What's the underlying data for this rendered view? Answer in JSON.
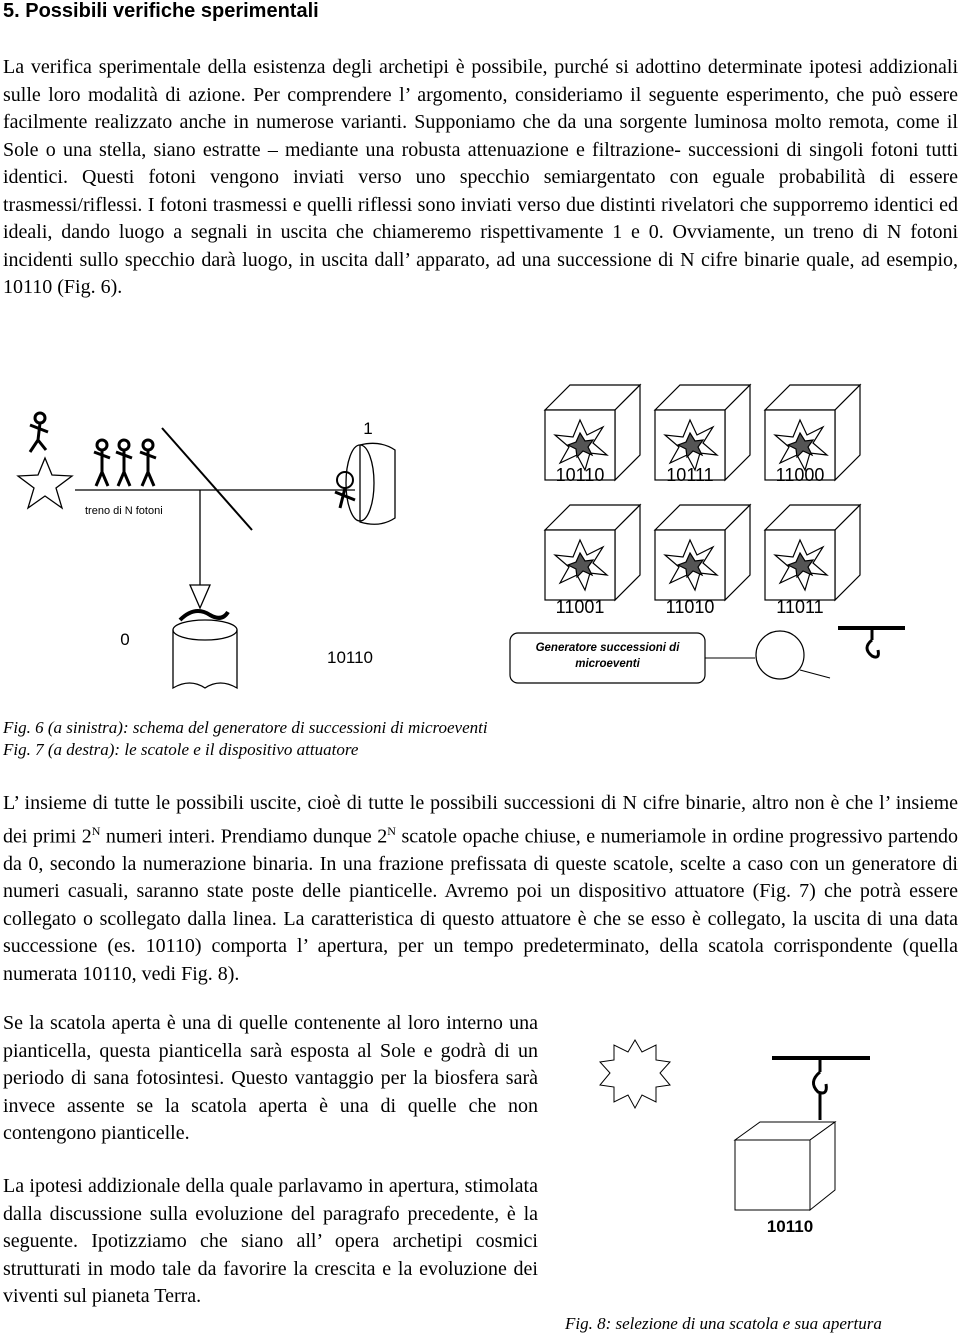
{
  "heading": "5. Possibili verifiche sperimentali",
  "paragraph1": "La verifica sperimentale della esistenza degli archetipi è possibile, purché si adottino determinate ipotesi addizionali sulle loro modalità di azione. Per comprendere l’ argomento, consideriamo il seguente esperimento, che può essere facilmente realizzato anche in numerose varianti. Supponiamo che da una sorgente luminosa molto remota, come il Sole o una stella, siano estratte – mediante una robusta attenuazione e filtrazione- successioni di singoli fotoni tutti identici. Questi fotoni vengono inviati verso uno specchio semiargentato con eguale probabilità di essere trasmessi/riflessi. I fotoni trasmessi e quelli riflessi sono inviati verso due distinti rivelatori che supporremo identici ed ideali, dando luogo a segnali in uscita che chiameremo rispettivamente 1 e 0. Ovviamente, un treno di N fotoni incidenti sullo specchio darà luogo, in uscita dall’ apparato, ad una successione di N cifre binarie quale, ad esempio, 10110 (Fig. 6).",
  "figure6": {
    "label_train": "treno di N fotoni",
    "label_transmitted": "1",
    "label_reflected": "0",
    "label_output": "10110"
  },
  "figure7": {
    "boxes": [
      "10110",
      "10111",
      "11000",
      "11001",
      "11010",
      "11011"
    ],
    "generator": "Generatore successioni di microeventi"
  },
  "captions": [
    "Fig. 6 (a sinistra): schema del generatore di successioni di microeventi",
    "Fig. 7 (a destra): le scatole e il dispositivo attuatore"
  ],
  "paragraph2": [
    "L’ insieme di tutte le possibili uscite, cioè di tutte le possibili successioni di N cifre binarie, altro non è che l’ insieme dei primi 2",
    "N",
    " numeri interi. Prendiamo dunque 2",
    "N",
    " scatole opache chiuse, e numeriamole in ordine progressivo partendo da 0, secondo la numerazione binaria. In una frazione prefissata di queste scatole, scelte a caso con un generatore di numeri casuali, saranno state poste delle pianticelle. Avremo poi un dispositivo attuatore (Fig. 7) che potrà essere collegato o scollegato dalla linea. La caratteristica di questo attuatore è che se esso è collegato, la uscita di una data successione (es. 10110) comporta l’ apertura, per un tempo predeterminato, della scatola corrispondente (quella numerata 10110, vedi Fig. 8)."
  ],
  "paragraph3": "Se la scatola aperta è una di quelle contenente al loro interno una pianticella, questa pianticella sarà esposta al Sole e godrà di un periodo di sana fotosintesi. Questo vantaggio per la biosfera sarà invece assente se la scatola aperta è una di quelle che non contengono pianticelle.",
  "paragraph4": "La ipotesi addizionale della quale parlavamo in apertura, stimolata dalla discussione sulla evoluzione del paragrafo precedente, è la seguente. Ipotizziamo che siano all’ opera archetipi cosmici strutturati in modo tale da favorire la crescita e la evoluzione dei viventi sul pianeta Terra.",
  "figure8": {
    "box": "10110",
    "caption": "Fig. 8: selezione di una scatola e sua apertura"
  }
}
